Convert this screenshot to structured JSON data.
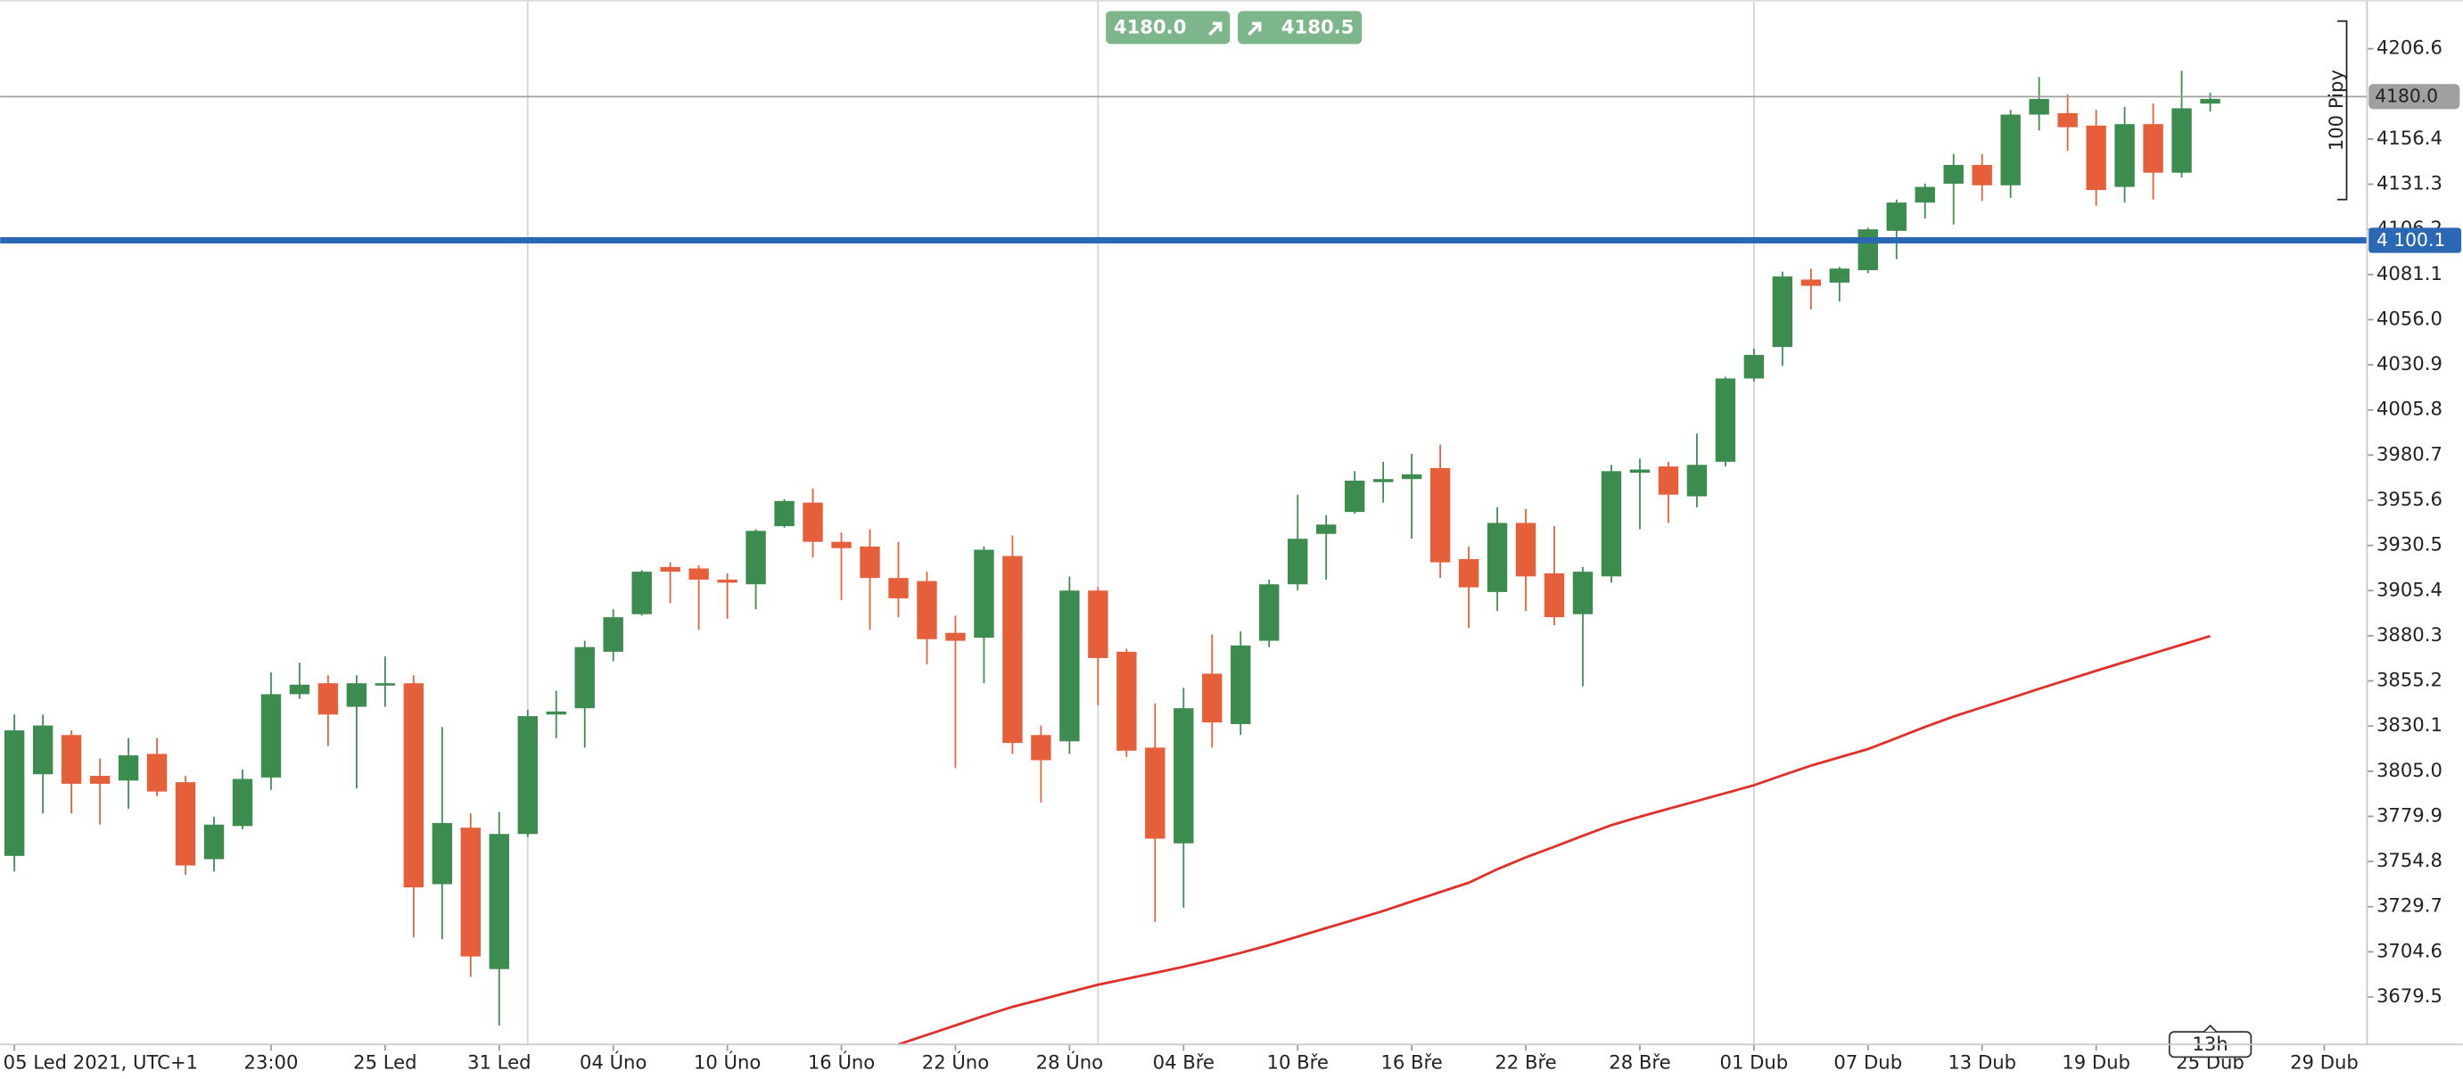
{
  "chart_data": {
    "type": "candlestick",
    "up_color": "#3d8c4f",
    "down_color": "#e5603a",
    "open": [
      3757.9,
      3803.3,
      3825.1,
      3802.4,
      3799.8,
      3814.6,
      3798.9,
      3756.1,
      3774.5,
      3801.5,
      3847.8,
      3853.9,
      3840.8,
      3853.1,
      3853.9,
      3742.2,
      3773.6,
      3695.0,
      3770.1,
      3836.5,
      3840.0,
      3871.4,
      3892.3,
      3918.5,
      3917.7,
      3911.5,
      3908.9,
      3941.2,
      3954.3,
      3932.5,
      3929.9,
      3912.4,
      3910.7,
      3881.9,
      3879.2,
      3924.6,
      3825.1,
      3821.6,
      3905.4,
      3871.4,
      3818.1,
      3764.9,
      3859.2,
      3831.2,
      3877.5,
      3908.9,
      3936.9,
      3949.1,
      3965.7,
      3967.4,
      3973.5,
      3922.9,
      3904.6,
      3943.0,
      3915.0,
      3892.3,
      3913.3,
      3970.9,
      3974.4,
      3957.8,
      3977.0,
      4023.3,
      4040.8,
      4078.3,
      4076.6,
      4083.5,
      4105.4,
      4121.1,
      4131.6,
      4142.0,
      4130.7,
      4170.0,
      4170.8,
      4163.9,
      4129.8,
      4164.7,
      4137.7,
      4176.1
    ],
    "high": [
      3836.5,
      3836.5,
      3827.7,
      3812.0,
      3823.4,
      3823.4,
      3802.4,
      3779.7,
      3805.9,
      3860.0,
      3865.3,
      3858.3,
      3858.3,
      3868.8,
      3858.3,
      3829.5,
      3781.5,
      3782.3,
      3839.1,
      3849.6,
      3877.5,
      3895.0,
      3916.8,
      3921.1,
      3919.4,
      3915.0,
      3939.5,
      3956.1,
      3962.2,
      3937.7,
      3939.5,
      3932.5,
      3915.9,
      3891.5,
      3929.9,
      3936.0,
      3830.4,
      3913.3,
      3907.2,
      3873.1,
      3842.6,
      3851.3,
      3881.0,
      3882.7,
      3911.5,
      3958.7,
      3947.3,
      3971.8,
      3977.0,
      3981.4,
      3986.6,
      3929.9,
      3951.7,
      3950.8,
      3941.2,
      3918.5,
      3975.3,
      3978.8,
      3977.0,
      3992.7,
      4024.2,
      4039.9,
      4082.7,
      4084.4,
      4085.3,
      4107.1,
      4122.8,
      4131.6,
      4148.1,
      4148.1,
      4172.6,
      4190.9,
      4181.3,
      4172.6,
      4174.3,
      4176.1,
      4194.4,
      4182.2
    ],
    "low": [
      3749.2,
      3781.5,
      3781.5,
      3775.3,
      3784.1,
      3791.1,
      3747.4,
      3749.2,
      3772.7,
      3794.6,
      3845.2,
      3819.0,
      3795.4,
      3840.8,
      3712.5,
      3711.6,
      3690.7,
      3663.6,
      3768.4,
      3823.4,
      3818.1,
      3866.1,
      3891.5,
      3898.4,
      3883.6,
      3889.7,
      3895.0,
      3940.4,
      3923.8,
      3900.2,
      3883.6,
      3890.6,
      3864.4,
      3806.8,
      3853.9,
      3814.6,
      3787.6,
      3814.6,
      3841.7,
      3812.9,
      3721.2,
      3729.1,
      3818.1,
      3825.1,
      3874.0,
      3905.4,
      3911.5,
      3948.2,
      3954.3,
      3934.2,
      3912.4,
      3884.5,
      3894.1,
      3894.1,
      3886.2,
      3852.2,
      3909.8,
      3939.5,
      3943.0,
      3951.7,
      3974.4,
      4021.6,
      4030.3,
      4061.7,
      4066.1,
      4081.8,
      4089.7,
      4112.3,
      4108.9,
      4122.0,
      4123.7,
      4161.2,
      4149.9,
      4119.3,
      4121.1,
      4122.8,
      4135.0,
      4171.7
    ],
    "close": [
      3827.7,
      3830.4,
      3798.0,
      3798.0,
      3813.8,
      3793.7,
      3752.6,
      3775.3,
      3800.7,
      3847.8,
      3853.1,
      3836.5,
      3853.9,
      3853.9,
      3740.4,
      3776.2,
      3702.0,
      3770.1,
      3835.6,
      3838.2,
      3874.0,
      3890.6,
      3915.9,
      3915.9,
      3911.5,
      3909.8,
      3938.6,
      3955.2,
      3932.5,
      3929.0,
      3912.4,
      3901.1,
      3878.4,
      3877.5,
      3928.1,
      3820.7,
      3811.1,
      3905.4,
      3867.9,
      3816.4,
      3767.5,
      3840.0,
      3832.1,
      3874.9,
      3908.9,
      3934.2,
      3942.1,
      3966.5,
      3967.4,
      3970.0,
      3921.1,
      3907.2,
      3943.0,
      3913.3,
      3890.6,
      3915.9,
      3971.8,
      3972.7,
      3958.7,
      3975.3,
      4023.3,
      4036.4,
      4080.0,
      4074.8,
      4084.4,
      4106.2,
      4121.1,
      4129.8,
      4142.0,
      4130.7,
      4170.0,
      4178.7,
      4163.0,
      4128.1,
      4164.7,
      4137.7,
      4173.5,
      4178.7
    ],
    "moving_average": {
      "color": "#e0302a",
      "values": [
        null,
        null,
        null,
        null,
        null,
        null,
        null,
        null,
        null,
        null,
        null,
        null,
        null,
        null,
        null,
        null,
        null,
        null,
        null,
        null,
        null,
        null,
        null,
        null,
        null,
        null,
        null,
        null,
        null,
        null,
        null,
        3653.1,
        3658.4,
        3663.7,
        3669.0,
        3674.0,
        3678.1,
        3682.2,
        3686.3,
        3689.6,
        3692.9,
        3696.3,
        3700.0,
        3704.0,
        3708.3,
        3713.0,
        3717.8,
        3722.5,
        3727.3,
        3732.6,
        3737.8,
        3743.0,
        3750.5,
        3757.1,
        3763.0,
        3769.1,
        3775.0,
        3779.7,
        3784.1,
        3788.4,
        3792.8,
        3797.2,
        3802.7,
        3808.1,
        3812.7,
        3817.3,
        3823.4,
        3829.6,
        3835.4,
        3840.5,
        3845.6,
        3850.8,
        3855.8,
        3860.8,
        3865.7,
        3870.5,
        3875.3,
        3880.1
      ]
    },
    "ylim": [
      3653.1,
      4233.7
    ],
    "yticks": [
      4206.6,
      4156.4,
      4131.3,
      4106.2,
      4081.1,
      {
        "value": 4056,
        "label": "4056.0"
      },
      4030.9,
      4005.8,
      3980.7,
      3955.6,
      3930.5,
      3905.4,
      3880.3,
      3855.2,
      3830.1,
      {
        "value": 3805,
        "label": "3805.0"
      },
      3779.9,
      3754.8,
      3729.7,
      3704.6,
      3679.5
    ],
    "xlim": [
      -0.5,
      82.5
    ],
    "xticks": [
      {
        "value": 0,
        "label": "05 Led 2021, UTC+1"
      },
      {
        "value": 9,
        "label": "23:00"
      },
      {
        "value": 13,
        "label": "25 Led"
      },
      {
        "value": 17,
        "label": "31 Led"
      },
      {
        "value": 21,
        "label": "04 Úno"
      },
      {
        "value": 25,
        "label": "10 Úno"
      },
      {
        "value": 29,
        "label": "16 Úno"
      },
      {
        "value": 33,
        "label": "22 Úno"
      },
      {
        "value": 37,
        "label": "28 Úno"
      },
      {
        "value": 41,
        "label": "04 Bře"
      },
      {
        "value": 45,
        "label": "10 Bře"
      },
      {
        "value": 49,
        "label": "16 Bře"
      },
      {
        "value": 53,
        "label": "22 Bře"
      },
      {
        "value": 57,
        "label": "28 Bře"
      },
      {
        "value": 61,
        "label": "01 Dub"
      },
      {
        "value": 65,
        "label": "07 Dub"
      },
      {
        "value": 69,
        "label": "13 Dub"
      },
      {
        "value": 73,
        "label": "19 Dub"
      },
      {
        "value": 77,
        "label": "25 Dub"
      },
      {
        "value": 81,
        "label": "29 Dub"
      }
    ],
    "xgrid": [
      18,
      38,
      61
    ],
    "price_line": {
      "value": 4180,
      "label": "4180.0",
      "color": "#a0a0a0"
    },
    "level_line": {
      "value": 4100.1,
      "label": "4 100.1",
      "color": "#2b68b3"
    },
    "range_ruler": {
      "label": "100 Pipy",
      "from": 4122.8,
      "to": 4222.0
    },
    "time_marker": "13h",
    "trade_buttons": {
      "sell": "4180.0",
      "buy": "4180.5",
      "color": "#7db68a"
    }
  }
}
